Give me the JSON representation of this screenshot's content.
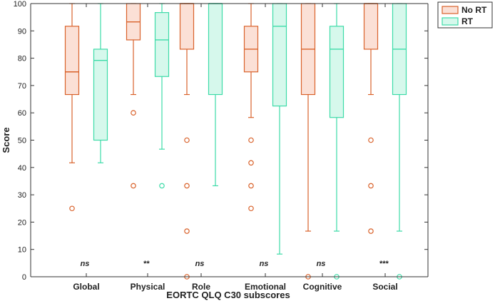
{
  "chart_data": {
    "type": "boxplot",
    "title": "",
    "xlabel": "EORTC QLQ C30 subscores",
    "ylabel": "Score",
    "ylim": [
      0,
      100
    ],
    "yticks": [
      0,
      10,
      20,
      30,
      40,
      50,
      60,
      70,
      80,
      90,
      100
    ],
    "grid": false,
    "legend_position": "top-right",
    "categories": [
      "Global",
      "Physical",
      "Role",
      "Emotional",
      "Cognitive",
      "Social"
    ],
    "significance": [
      "ns",
      "**",
      "ns",
      "ns",
      "ns",
      "***"
    ],
    "series": [
      {
        "name": "No RT",
        "stroke": "#d9622b",
        "fill": "#fbe0d6",
        "boxes": [
          {
            "min": 41.7,
            "q1": 66.7,
            "median": 75.0,
            "q3": 91.7,
            "max": 100,
            "outliers": [
              25
            ]
          },
          {
            "min": 66.7,
            "q1": 86.7,
            "median": 93.3,
            "q3": 100,
            "max": 100,
            "outliers": [
              60,
              33.3
            ]
          },
          {
            "min": 66.7,
            "q1": 83.3,
            "median": 100,
            "q3": 100,
            "max": 100,
            "outliers": [
              50,
              33.3,
              16.7,
              0
            ]
          },
          {
            "min": 58.3,
            "q1": 75.0,
            "median": 83.3,
            "q3": 91.7,
            "max": 100,
            "outliers": [
              50,
              41.7,
              33.3,
              25
            ]
          },
          {
            "min": 16.7,
            "q1": 66.7,
            "median": 83.3,
            "q3": 100,
            "max": 100,
            "outliers": [
              0
            ]
          },
          {
            "min": 66.7,
            "q1": 83.3,
            "median": 100,
            "q3": 100,
            "max": 100,
            "outliers": [
              50,
              33.3,
              16.7
            ]
          }
        ]
      },
      {
        "name": "RT",
        "stroke": "#3ddba8",
        "fill": "#d6f8ec",
        "boxes": [
          {
            "min": 41.7,
            "q1": 50.0,
            "median": 79.2,
            "q3": 83.3,
            "max": 100,
            "outliers": []
          },
          {
            "min": 46.7,
            "q1": 73.3,
            "median": 86.7,
            "q3": 96.7,
            "max": 100,
            "outliers": [
              33.3
            ]
          },
          {
            "min": 33.3,
            "q1": 66.7,
            "median": 100,
            "q3": 100,
            "max": 100,
            "outliers": []
          },
          {
            "min": 8.3,
            "q1": 62.5,
            "median": 91.7,
            "q3": 100,
            "max": 100,
            "outliers": []
          },
          {
            "min": 16.7,
            "q1": 58.3,
            "median": 83.3,
            "q3": 91.7,
            "max": 100,
            "outliers": [
              0
            ]
          },
          {
            "min": 16.7,
            "q1": 66.7,
            "median": 83.3,
            "q3": 100,
            "max": 100,
            "outliers": [
              0
            ]
          }
        ]
      }
    ]
  }
}
